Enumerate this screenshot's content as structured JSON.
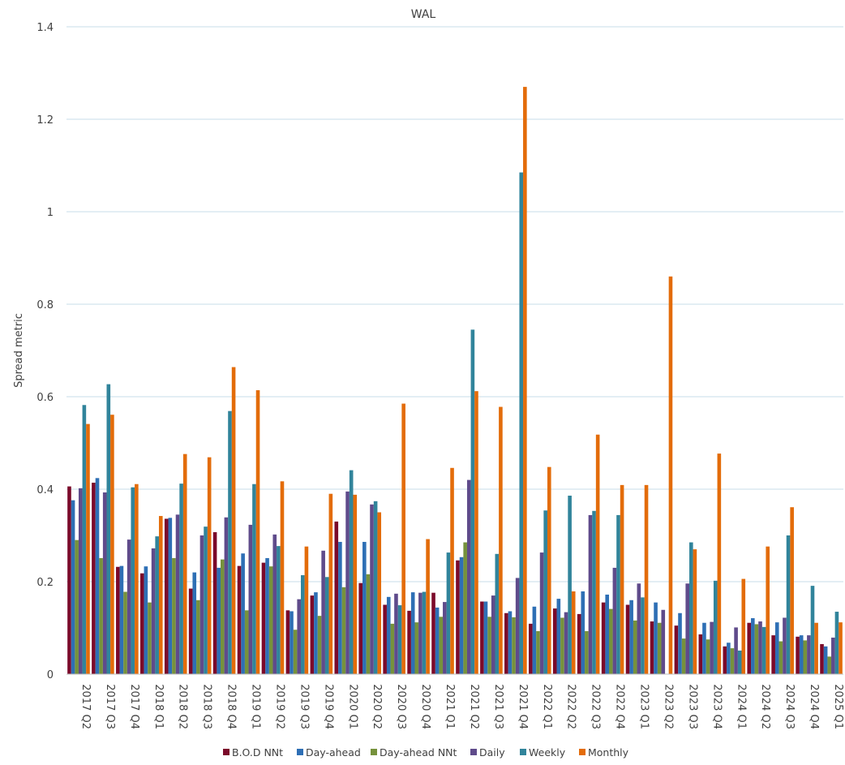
{
  "chart_data": {
    "type": "bar",
    "title": "WAL",
    "xlabel": "",
    "ylabel": "Spread metric",
    "ylim": [
      0,
      1.4
    ],
    "yticks": [
      "0",
      "0.2",
      "0.4",
      "0.6",
      "0.8",
      "1",
      "1.2",
      "1.4"
    ],
    "grid": true,
    "legend_position": "bottom",
    "categories": [
      "2017 Q2",
      "2017 Q3",
      "2017 Q4",
      "2018 Q1",
      "2018 Q2",
      "2018 Q3",
      "2018 Q4",
      "2019 Q1",
      "2019 Q2",
      "2019 Q3",
      "2019 Q4",
      "2020 Q1",
      "2020 Q2",
      "2020 Q3",
      "2020 Q4",
      "2021 Q1",
      "2021 Q2",
      "2021 Q3",
      "2021 Q4",
      "2022 Q1",
      "2022 Q2",
      "2022 Q3",
      "2022 Q4",
      "2023 Q1",
      "2023 Q2",
      "2023 Q3",
      "2023 Q4",
      "2024 Q1",
      "2024 Q2",
      "2024 Q3",
      "2024 Q4",
      "2025 Q1"
    ],
    "series": [
      {
        "name": "B.O.D NNt",
        "color": "#7b0a2a",
        "values": [
          0.406,
          0.414,
          0.232,
          0.218,
          0.336,
          0.185,
          0.307,
          0.234,
          0.241,
          0.138,
          0.17,
          0.33,
          0.197,
          0.15,
          0.137,
          0.176,
          0.246,
          0.157,
          0.132,
          0.109,
          0.142,
          0.13,
          0.155,
          0.15,
          0.114,
          0.105,
          0.086,
          0.06,
          0.111,
          0.084,
          0.081,
          0.065
        ]
      },
      {
        "name": "Day-ahead",
        "color": "#2e6fb5",
        "values": [
          0.376,
          0.424,
          0.234,
          0.233,
          0.338,
          0.22,
          0.23,
          0.261,
          0.251,
          0.136,
          0.177,
          0.286,
          0.286,
          0.167,
          0.177,
          0.144,
          0.253,
          0.157,
          0.136,
          0.146,
          0.163,
          0.179,
          0.172,
          0.16,
          0.155,
          0.132,
          0.111,
          0.068,
          0.121,
          0.112,
          0.084,
          0.06
        ]
      },
      {
        "name": "Day-ahead NNt",
        "color": "#76923c",
        "values": [
          0.29,
          0.251,
          0.178,
          0.155,
          0.251,
          0.16,
          0.248,
          0.138,
          0.233,
          0.096,
          0.126,
          0.188,
          0.216,
          0.109,
          0.112,
          0.124,
          0.285,
          0.124,
          0.123,
          0.093,
          0.122,
          0.093,
          0.141,
          0.116,
          0.111,
          0.077,
          0.075,
          0.056,
          0.108,
          0.071,
          0.073,
          0.038
        ]
      },
      {
        "name": "Daily",
        "color": "#5f4b8b",
        "values": [
          0.402,
          0.393,
          0.291,
          0.272,
          0.345,
          0.3,
          0.339,
          0.323,
          0.302,
          0.162,
          0.267,
          0.395,
          0.367,
          0.174,
          0.176,
          0.156,
          0.42,
          0.17,
          0.208,
          0.263,
          0.134,
          0.344,
          0.23,
          0.196,
          0.139,
          0.196,
          0.113,
          0.101,
          0.114,
          0.122,
          0.084,
          0.079
        ]
      },
      {
        "name": "Weekly",
        "color": "#31849b",
        "values": [
          0.582,
          0.627,
          0.404,
          0.298,
          0.412,
          0.319,
          0.569,
          0.411,
          0.277,
          0.214,
          0.21,
          0.441,
          0.374,
          0.149,
          0.178,
          0.263,
          0.745,
          0.26,
          1.085,
          0.354,
          0.386,
          0.353,
          0.344,
          0.166,
          0.0,
          0.285,
          0.202,
          0.051,
          0.102,
          0.3,
          0.191,
          0.135
        ]
      },
      {
        "name": "Monthly",
        "color": "#e36c0a",
        "values": [
          0.541,
          0.561,
          0.411,
          0.342,
          0.476,
          0.469,
          0.664,
          0.614,
          0.417,
          0.276,
          0.39,
          0.388,
          0.35,
          0.585,
          0.292,
          0.446,
          0.612,
          0.578,
          1.27,
          0.448,
          0.179,
          0.518,
          0.409,
          0.409,
          0.86,
          0.27,
          0.477,
          0.206,
          0.276,
          0.361,
          0.111,
          0.112
        ]
      }
    ]
  }
}
